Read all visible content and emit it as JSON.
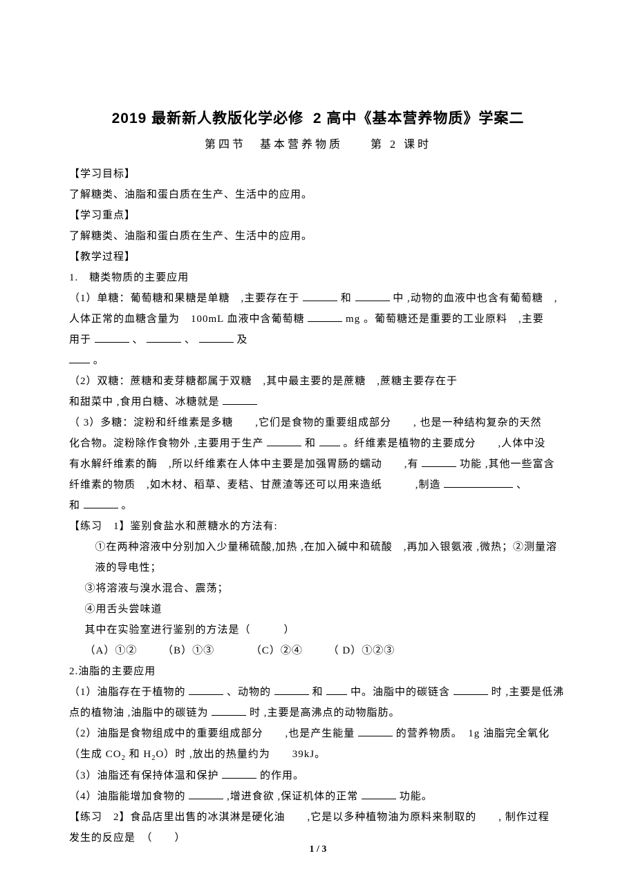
{
  "title_prefix": "2019 最新新人教版化学必修",
  "title_num": "2",
  "title_suffix": "高中《基本营养物质》学案二",
  "subtitle": "第四节　基本营养物质　　第 2 课时",
  "h_obj": "【学习目标】",
  "p_obj": "了解糖类、油脂和蛋白质在生产、生活中的应用。",
  "h_focus": "【学习重点】",
  "p_focus": "了解糖类、油脂和蛋白质在生产、生活中的应用。",
  "h_proc": "【教学过程】",
  "sec1": "1.　糖类物质的主要应用",
  "s1_1a": "（1）单糖：葡萄糖和果糖是单糖　,主要存在于",
  "s1_1b": "和",
  "s1_1c": "中 ,动物的血液中也含有葡萄糖　,",
  "s1_2a": "人体正常的血糖含量为　100mL 血液中含葡萄糖",
  "s1_2b": "mg 。葡萄糖还是重要的工业原料　,主要",
  "s1_3a": "用于",
  "s1_3b": "、",
  "s1_3c": "、",
  "s1_3d": "及",
  "s1_4": "。",
  "s2_1a": "（2）双糖：蔗糖和麦芽糖都属于双糖　,其中最主要的是蔗糖　,蔗糖主要存在于",
  "s2_2a": "和甜菜中 ,食用白糖、冰糖就是",
  "s3_1a": "（ 3）多糖：淀粉和纤维素是多糖　　,它们是食物的重要组成部分　　, 也是一种结构复杂的天然",
  "s3_2a": "化合物。淀粉除作食物外 ,主要用于生产",
  "s3_2b": "和",
  "s3_2c": "。纤维素是植物的主要成分　　,人体中没",
  "s3_3a": "有水解纤维素的酶　,所以纤维素在人体中主要是加强胃肠的蠕动　　,有",
  "s3_3b": "功能 ,其他一些富含",
  "s3_4a": "纤维素的物质　,如木材、稻草、麦秸、甘蔗渣等还可以用来造纸　　　,制造",
  "s3_4b": "、",
  "s3_5a": "和",
  "s3_5b": "。",
  "ex1_h": "【练习　1】鉴别食盐水和蔗糖水的方法有:",
  "ex1_1": "①在两种溶液中分别加入少量稀硫酸,加热 ,在加入碱中和硫酸　,再加入银氨液 ,微热；②测量溶",
  "ex1_1b": "液的导电性；",
  "ex1_2": "③将溶液与溴水混合、震荡；",
  "ex1_3": "④用舌头尝味道",
  "ex1_4": "其中在实验室进行鉴别的方法是（　　　）",
  "ex1_optA": "（A）①②",
  "ex1_optB": "（B）①③",
  "ex1_optC": "（C）②④",
  "ex1_optD": "（ D）①②③",
  "sec2": "2.油脂的主要应用",
  "o1a": "（1）油脂存在于植物的",
  "o1b": "、动物的",
  "o1c": "和",
  "o1d": "中。油脂中的碳链含",
  "o1e": "时 ,主要是低沸",
  "o2a": "点的植物油 ,油脂中的碳链为",
  "o2b": "时 ,主要是高沸点的动物脂肪。",
  "o3a": "（2）油脂是食物组成中的重要组成部分　　,也是产生能量",
  "o3b": "的营养物质。　1g 油脂完全氧化",
  "o4a": "（生成 CO",
  "o4b": "和 H",
  "o4c": "O）时 ,放出的热量约为　　39kJ。",
  "o5a": "（3）油脂还有保持体温和保护",
  "o5b": "的作用。",
  "o6a": "（4）油脂能增加食物的",
  "o6b": ",增进食欲 ,保证机体的正常",
  "o6c": "功能。",
  "ex2_a": "【练习　2】食品店里出售的冰淇淋是硬化油　　,它是以多种植物油为原料来制取的　　, 制作过程",
  "ex2_b": "发生的反应是　（　　）",
  "pagenum": "1 / 3",
  "sub2": "2"
}
